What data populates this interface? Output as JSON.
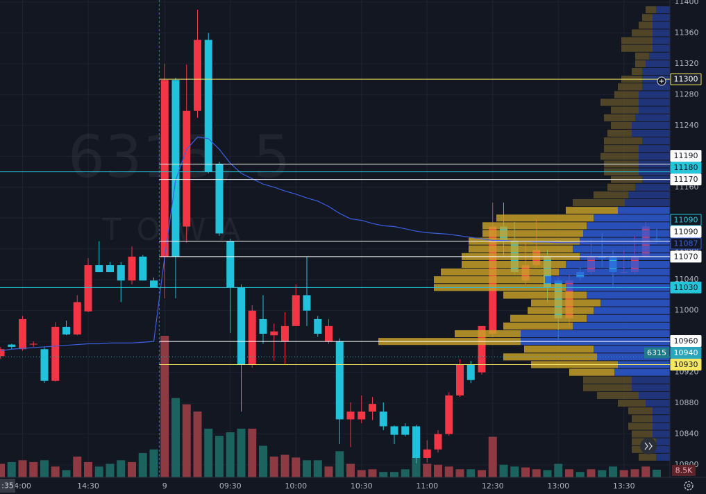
{
  "chart_data": {
    "type": "candlestick",
    "watermark": {
      "title": "6315, 5",
      "subtitle": "TOWA"
    },
    "time_cursor": ":35",
    "categories": [
      null,
      null,
      "4:00",
      null,
      null,
      null,
      null,
      null,
      "14:30",
      null,
      null,
      null,
      null,
      null,
      null,
      "9",
      null,
      null,
      null,
      null,
      null,
      "09:30",
      null,
      null,
      null,
      null,
      null,
      "10:00",
      null,
      null,
      null,
      null,
      null,
      "10:30",
      null,
      null,
      null,
      null,
      null,
      "11:00",
      null,
      null,
      null,
      null,
      null,
      "12:30",
      null,
      null,
      null,
      null,
      null,
      "13:00",
      null,
      null,
      null,
      null,
      null,
      "13:30",
      null,
      null,
      null
    ],
    "ohlc": [
      [
        10941,
        10953,
        10937,
        10950
      ],
      [
        10956,
        10957,
        10950,
        10953
      ],
      [
        10950,
        10993,
        10948,
        10989
      ],
      [
        10956,
        10960,
        10953,
        10957
      ],
      [
        10950,
        10953,
        10906,
        10909
      ],
      [
        10909,
        10985,
        10908,
        10979
      ],
      [
        10979,
        10987,
        10968,
        10969
      ],
      [
        10969,
        11020,
        10968,
        11011
      ],
      [
        10999,
        11068,
        10998,
        11059
      ],
      [
        11059,
        11090,
        11050,
        11050
      ],
      [
        11059,
        11063,
        11050,
        11050
      ],
      [
        11059,
        11063,
        11011,
        11039
      ],
      [
        11039,
        11083,
        11034,
        11070
      ],
      [
        11070,
        11072,
        11039,
        11039
      ],
      [
        11039,
        11043,
        11030,
        11030
      ],
      [
        11070,
        11320,
        11016,
        11299
      ],
      [
        11299,
        11302,
        11016,
        11070
      ],
      [
        11109,
        11319,
        11088,
        11259
      ],
      [
        11259,
        11390,
        11250,
        11351
      ],
      [
        11351,
        11360,
        11178,
        11180
      ],
      [
        11190,
        11193,
        11097,
        11100
      ],
      [
        11090,
        11093,
        10971,
        11030
      ],
      [
        11030,
        11034,
        10869,
        10930
      ],
      [
        10930,
        11007,
        10926,
        11000
      ],
      [
        10989,
        11020,
        10957,
        10970
      ],
      [
        10968,
        10983,
        10935,
        10973
      ],
      [
        10960,
        10998,
        10930,
        10980
      ],
      [
        10980,
        11034,
        10980,
        11020
      ],
      [
        11020,
        11070,
        10980,
        11000
      ],
      [
        10989,
        10993,
        10966,
        10970
      ],
      [
        10960,
        10989,
        10957,
        10980
      ],
      [
        10960,
        10964,
        10827,
        10859
      ],
      [
        10859,
        10881,
        10823,
        10869
      ],
      [
        10859,
        10890,
        10854,
        10869
      ],
      [
        10869,
        10888,
        10858,
        10879
      ],
      [
        10869,
        10881,
        10845,
        10850
      ],
      [
        10850,
        10851,
        10827,
        10839
      ],
      [
        10850,
        10854,
        10837,
        10839
      ],
      [
        10850,
        10852,
        10802,
        10809
      ],
      [
        10809,
        10832,
        10803,
        10820
      ],
      [
        10820,
        10845,
        10816,
        10840
      ],
      [
        10840,
        10894,
        10838,
        10890
      ],
      [
        10890,
        10937,
        10888,
        10930
      ],
      [
        10930,
        10935,
        10906,
        10910
      ],
      [
        10920,
        10980,
        10917,
        10980
      ],
      [
        10970,
        11140,
        10966,
        11109
      ],
      [
        11109,
        11140,
        11070,
        11090
      ],
      [
        11090,
        11115,
        11047,
        11050
      ],
      [
        11039,
        11088,
        11034,
        11059
      ],
      [
        11059,
        11119,
        11056,
        11079
      ],
      [
        11070,
        11079,
        11011,
        11030
      ],
      [
        11039,
        11043,
        10962,
        10990
      ],
      [
        10990,
        11047,
        10980,
        11039
      ],
      [
        11050,
        11056,
        11039,
        11043
      ],
      [
        11050,
        11092,
        11047,
        11070
      ],
      [
        11070,
        11101,
        11056,
        11068
      ],
      [
        11070,
        11079,
        11030,
        11050
      ],
      [
        11050,
        11079,
        11047,
        11050
      ],
      [
        11050,
        11097,
        11047,
        11070
      ],
      [
        11070,
        11115,
        11068,
        11109
      ],
      [
        11093,
        11106,
        11088,
        11092
      ]
    ],
    "up_color": "#f23645",
    "down_color": "#22c1dc",
    "volume": {
      "values": [
        15,
        17,
        19,
        17,
        19,
        12,
        8,
        23,
        17,
        12,
        15,
        19,
        17,
        27,
        31,
        157,
        88,
        81,
        73,
        54,
        46,
        50,
        54,
        54,
        35,
        23,
        25,
        22,
        19,
        19,
        12,
        29,
        15,
        8,
        9,
        6,
        6,
        9,
        23,
        15,
        14,
        12,
        9,
        9,
        8,
        45,
        14,
        12,
        11,
        9,
        8,
        15,
        9,
        6,
        9,
        8,
        12,
        8,
        9,
        12,
        8.5
      ],
      "last_label": "8.5K",
      "up_color": "#8d3a43",
      "down_color": "#1c625f"
    },
    "vwap": {
      "values": [
        10948,
        10950,
        10951,
        10952,
        10953,
        10954,
        10955,
        10956,
        10957,
        10957,
        10958,
        10958,
        10958,
        10959,
        10960,
        11070,
        11169,
        11209,
        11225,
        11223,
        11209,
        11191,
        11178,
        11171,
        11164,
        11160,
        11155,
        11151,
        11146,
        11142,
        11135,
        11126,
        11119,
        11117,
        11113,
        11110,
        11109,
        11106,
        11103,
        11101,
        11100,
        11099,
        11097,
        11095,
        11093,
        11091,
        11091,
        11090,
        11090,
        11089,
        11089,
        11088,
        11088,
        11088,
        11087,
        11087,
        11087,
        11087,
        11087,
        11087,
        11087
      ],
      "color": "#3a5fe0"
    },
    "profile": {
      "prices": [
        11390,
        11380,
        11370,
        11360,
        11350,
        11340,
        11330,
        11320,
        11310,
        11300,
        11290,
        11280,
        11270,
        11260,
        11250,
        11240,
        11230,
        11220,
        11210,
        11200,
        11190,
        11180,
        11170,
        11160,
        11150,
        11140,
        11130,
        11120,
        11110,
        11100,
        11090,
        11080,
        11070,
        11060,
        11050,
        11040,
        11030,
        11020,
        11010,
        11000,
        10990,
        10980,
        10970,
        10960,
        10950,
        10940,
        10930,
        10920,
        10910,
        10900,
        10890,
        10880,
        10870,
        10860,
        10850,
        10840,
        10830,
        10820,
        10810
      ],
      "value_area": [
        10920,
        11130
      ],
      "series": [
        {
          "color": "#5e5128",
          "value_area_color": "#c9a227",
          "values": [
            15,
            15,
            20,
            30,
            45,
            45,
            20,
            15,
            15,
            30,
            35,
            35,
            55,
            40,
            45,
            30,
            35,
            55,
            50,
            55,
            50,
            50,
            45,
            40,
            50,
            75,
            75,
            140,
            150,
            145,
            160,
            150,
            170,
            150,
            170,
            160,
            190,
            120,
            100,
            95,
            110,
            100,
            95,
            205,
            100,
            135,
            125,
            65,
            70,
            70,
            60,
            40,
            35,
            30,
            35,
            30,
            35,
            30,
            25
          ]
        },
        {
          "color": "#233a8c",
          "value_area_color": "#2e5bd9",
          "values": [
            20,
            25,
            25,
            25,
            25,
            25,
            30,
            35,
            40,
            40,
            40,
            45,
            45,
            45,
            50,
            55,
            55,
            40,
            45,
            45,
            45,
            45,
            40,
            50,
            60,
            65,
            75,
            110,
            120,
            125,
            130,
            140,
            130,
            150,
            160,
            180,
            150,
            120,
            100,
            110,
            120,
            140,
            215,
            215,
            110,
            105,
            75,
            80,
            55,
            55,
            45,
            35,
            25,
            25,
            25,
            25,
            20,
            25,
            20
          ]
        }
      ]
    },
    "levels": [
      {
        "value": 11300,
        "line": "session",
        "color": "#f5e663",
        "label_fill": "#1e222d",
        "label_color": "#ffffff",
        "label_border": "#f5e663"
      },
      {
        "value": 11190,
        "line": "session",
        "color": "#ffffff",
        "label_fill": "#ffffff",
        "label_color": "#131722",
        "label_border": "#ffffff"
      },
      {
        "value": 11180,
        "line": "full",
        "color": "#26c6da",
        "label_fill": "#26c6da",
        "label_color": "#131722",
        "label_border": "#26c6da"
      },
      {
        "value": 11170,
        "line": "session",
        "color": "#ffffff",
        "label_fill": "#ffffff",
        "label_color": "#131722",
        "label_border": "#ffffff"
      },
      {
        "value": 11090,
        "line": "session",
        "color": "#ffffff",
        "label_fill": "#ffffff",
        "label_color": "#131722",
        "label_border": "#ffffff"
      },
      {
        "value": 11090,
        "line": "none",
        "color": "#26c6da",
        "label_fill": "#131722",
        "label_color": "#26c6da",
        "label_border": "#26c6da"
      },
      {
        "value": 11070,
        "line": "session",
        "color": "#ffffff",
        "label_fill": "#ffffff",
        "label_color": "#131722",
        "label_border": "#ffffff"
      },
      {
        "value": 11030,
        "line": "full",
        "color": "#26c6da",
        "label_fill": "#26c6da",
        "label_color": "#131722",
        "label_border": "#26c6da"
      },
      {
        "value": 10960,
        "line": "session",
        "color": "#ffffff",
        "label_fill": "#ffffff",
        "label_color": "#131722",
        "label_border": "#ffffff"
      },
      {
        "value": 10940,
        "line": "dotted",
        "color": "#3aa6b9",
        "label_fill": "#2aa5bb",
        "label_color": "#ffffff",
        "label_border": "#2aa5bb",
        "tag": "6315",
        "tag_fill": "#1f7b8a"
      },
      {
        "value": 10930,
        "line": "session",
        "color": "#f5e663",
        "label_fill": "#f5e663",
        "label_color": "#131722",
        "label_border": "#f5e663"
      }
    ],
    "ylim": [
      10800,
      11400
    ],
    "yticks": [
      10800,
      10840,
      10880,
      10920,
      10960,
      11000,
      11040,
      11080,
      11120,
      11160,
      11200,
      11240,
      11280,
      11320,
      11360,
      11400
    ],
    "grid": true
  }
}
